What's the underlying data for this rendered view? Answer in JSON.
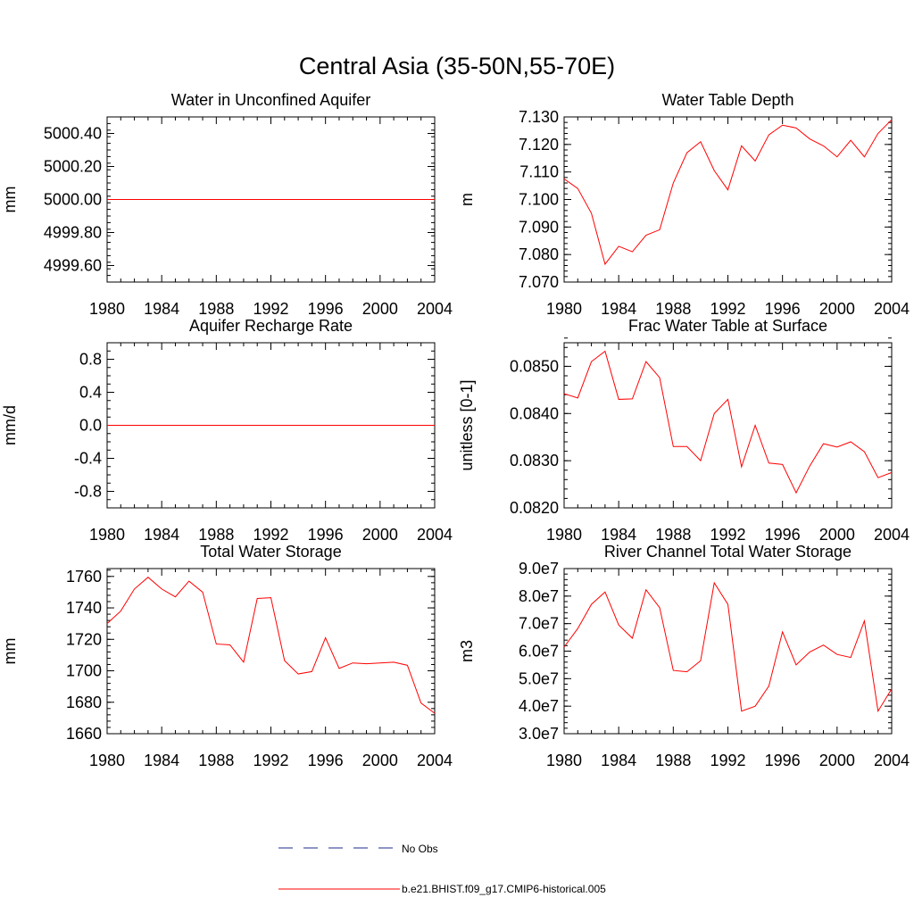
{
  "figure": {
    "title": "Central Asia (35-50N,55-70E)"
  },
  "legend": {
    "obs_label": "No Obs",
    "model_label": "b.e21.BHIST.f09_g17.CMIP6-historical.005",
    "model_color": "#ff0000",
    "obs_color": "#1f2a8c"
  },
  "chart_data": [
    {
      "id": "aquifer",
      "type": "line",
      "title": "Water in Unconfined Aquifer",
      "ylabel": "mm",
      "xlim": [
        1980,
        2004
      ],
      "ylim": [
        4999.5,
        5000.5
      ],
      "xticks": [
        1980,
        1984,
        1988,
        1992,
        1996,
        2000,
        2004
      ],
      "yticks": [
        4999.6,
        4999.8,
        5000.0,
        5000.2,
        5000.4
      ],
      "ytick_labels": [
        "4999.60",
        "4999.80",
        "5000.00",
        "5000.20",
        "5000.40"
      ],
      "yminor": 0.04,
      "series": [
        {
          "x": [
            1980,
            1981,
            1982,
            1983,
            1984,
            1985,
            1986,
            1987,
            1988,
            1989,
            1990,
            1991,
            1992,
            1993,
            1994,
            1995,
            1996,
            1997,
            1998,
            1999,
            2000,
            2001,
            2002,
            2003,
            2004
          ],
          "y": [
            5000,
            5000,
            5000,
            5000,
            5000,
            5000,
            5000,
            5000,
            5000,
            5000,
            5000,
            5000,
            5000,
            5000,
            5000,
            5000,
            5000,
            5000,
            5000,
            5000,
            5000,
            5000,
            5000,
            5000,
            5000
          ]
        }
      ]
    },
    {
      "id": "wtd",
      "type": "line",
      "title": "Water Table Depth",
      "ylabel": "m",
      "xlim": [
        1980,
        2004
      ],
      "ylim": [
        7.07,
        7.13
      ],
      "xticks": [
        1980,
        1984,
        1988,
        1992,
        1996,
        2000,
        2004
      ],
      "yticks": [
        7.07,
        7.08,
        7.09,
        7.1,
        7.11,
        7.12,
        7.13
      ],
      "ytick_labels": [
        "7.070",
        "7.080",
        "7.090",
        "7.100",
        "7.110",
        "7.120",
        "7.130"
      ],
      "yminor": 0.002,
      "series": [
        {
          "x": [
            1980,
            1981,
            1982,
            1983,
            1984,
            1985,
            1986,
            1987,
            1988,
            1989,
            1990,
            1991,
            1992,
            1993,
            1994,
            1995,
            1996,
            1997,
            1998,
            1999,
            2000,
            2001,
            2002,
            2003,
            2004
          ],
          "y": [
            7.1075,
            7.104,
            7.095,
            7.0765,
            7.083,
            7.081,
            7.087,
            7.089,
            7.106,
            7.117,
            7.121,
            7.1105,
            7.1035,
            7.1195,
            7.114,
            7.1235,
            7.127,
            7.126,
            7.122,
            7.1195,
            7.1155,
            7.1215,
            7.1155,
            7.124,
            7.129
          ]
        }
      ]
    },
    {
      "id": "recharge",
      "type": "line",
      "title": "Aquifer Recharge Rate",
      "ylabel": "mm/d",
      "xlim": [
        1980,
        2004
      ],
      "ylim": [
        -1.0,
        1.0
      ],
      "xticks": [
        1980,
        1984,
        1988,
        1992,
        1996,
        2000,
        2004
      ],
      "yticks": [
        -0.8,
        -0.4,
        0.0,
        0.4,
        0.8
      ],
      "ytick_labels": [
        "-0.8",
        "-0.4",
        "0.0",
        "0.4",
        "0.8"
      ],
      "yminor": 0.1,
      "series": [
        {
          "x": [
            1980,
            1981,
            1982,
            1983,
            1984,
            1985,
            1986,
            1987,
            1988,
            1989,
            1990,
            1991,
            1992,
            1993,
            1994,
            1995,
            1996,
            1997,
            1998,
            1999,
            2000,
            2001,
            2002,
            2003,
            2004
          ],
          "y": [
            0,
            0,
            0,
            0,
            0,
            0,
            0,
            0,
            0,
            0,
            0,
            0,
            0,
            0,
            0,
            0,
            0,
            0,
            0,
            0,
            0,
            0,
            0,
            0,
            0
          ]
        }
      ]
    },
    {
      "id": "frac",
      "type": "line",
      "title": "Frac Water Table at Surface",
      "ylabel": "unitless [0-1]",
      "xlim": [
        1980,
        2004
      ],
      "ylim": [
        0.082,
        0.0855
      ],
      "xticks": [
        1980,
        1984,
        1988,
        1992,
        1996,
        2000,
        2004
      ],
      "yticks": [
        0.082,
        0.083,
        0.084,
        0.085
      ],
      "ytick_labels": [
        "0.0820",
        "0.0830",
        "0.0840",
        "0.0850"
      ],
      "yminor": 0.0002,
      "series": [
        {
          "x": [
            1980,
            1981,
            1982,
            1983,
            1984,
            1985,
            1986,
            1987,
            1988,
            1989,
            1990,
            1991,
            1992,
            1993,
            1994,
            1995,
            1996,
            1997,
            1998,
            1999,
            2000,
            2001,
            2002,
            2003,
            2004
          ],
          "y": [
            0.08442,
            0.08433,
            0.0851,
            0.08532,
            0.0843,
            0.08431,
            0.0851,
            0.08476,
            0.0833,
            0.0833,
            0.083,
            0.084,
            0.0843,
            0.08287,
            0.08375,
            0.08295,
            0.08292,
            0.08232,
            0.08289,
            0.08336,
            0.08329,
            0.0834,
            0.08319,
            0.08264,
            0.08275
          ]
        }
      ]
    },
    {
      "id": "tws",
      "type": "line",
      "title": "Total Water Storage",
      "ylabel": "mm",
      "xlim": [
        1980,
        2004
      ],
      "ylim": [
        1660,
        1765
      ],
      "xticks": [
        1980,
        1984,
        1988,
        1992,
        1996,
        2000,
        2004
      ],
      "yticks": [
        1660,
        1680,
        1700,
        1720,
        1740,
        1760
      ],
      "ytick_labels": [
        "1660",
        "1680",
        "1700",
        "1720",
        "1740",
        "1760"
      ],
      "yminor": 4,
      "series": [
        {
          "x": [
            1980,
            1981,
            1982,
            1983,
            1984,
            1985,
            1986,
            1987,
            1988,
            1989,
            1990,
            1991,
            1992,
            1993,
            1994,
            1995,
            1996,
            1997,
            1998,
            1999,
            2000,
            2001,
            2002,
            2003,
            2004
          ],
          "y": [
            1730,
            1738,
            1752,
            1759.5,
            1752,
            1747,
            1757,
            1750,
            1717,
            1716.5,
            1705.5,
            1746,
            1746.5,
            1706.5,
            1698,
            1699.5,
            1721,
            1701.5,
            1705,
            1704.5,
            1705,
            1705.5,
            1703.5,
            1679.5,
            1673
          ]
        }
      ]
    },
    {
      "id": "river",
      "type": "line",
      "title": "River Channel Total Water Storage",
      "ylabel": "m3",
      "xlim": [
        1980,
        2004
      ],
      "ylim": [
        30000000,
        90000000
      ],
      "xticks": [
        1980,
        1984,
        1988,
        1992,
        1996,
        2000,
        2004
      ],
      "yticks": [
        30000000,
        40000000,
        50000000,
        60000000,
        70000000,
        80000000,
        90000000
      ],
      "ytick_labels": [
        "3.0e7",
        "4.0e7",
        "5.0e7",
        "6.0e7",
        "7.0e7",
        "8.0e7",
        "9.0e7"
      ],
      "yminor": 2000000,
      "series": [
        {
          "x": [
            1980,
            1981,
            1982,
            1983,
            1984,
            1985,
            1986,
            1987,
            1988,
            1989,
            1990,
            1991,
            1992,
            1993,
            1994,
            1995,
            1996,
            1997,
            1998,
            1999,
            2000,
            2001,
            2002,
            2003,
            2004
          ],
          "y": [
            61500000,
            68200000,
            77000000,
            81500000,
            69500000,
            64700000,
            82300000,
            75800000,
            53000000,
            52500000,
            56500000,
            84800000,
            77000000,
            38200000,
            40000000,
            47300000,
            67000000,
            55000000,
            59700000,
            62200000,
            58800000,
            57700000,
            71000000,
            38200000,
            46300000
          ]
        }
      ]
    }
  ]
}
